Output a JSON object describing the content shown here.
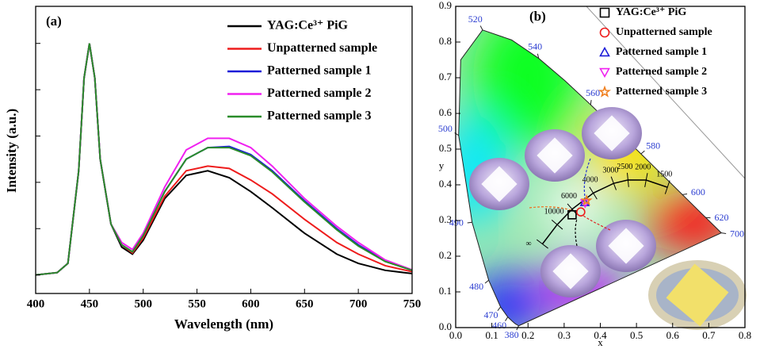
{
  "chart_data": [
    {
      "type": "line",
      "panel_label": "(a)",
      "xlabel": "Wavelength (nm)",
      "ylabel": "Intensity (a.u.)",
      "x": [
        400,
        420,
        430,
        440,
        445,
        450,
        455,
        460,
        470,
        480,
        490,
        500,
        520,
        540,
        560,
        580,
        600,
        620,
        650,
        680,
        700,
        725,
        750
      ],
      "xlim": [
        400,
        750
      ],
      "xticks": [
        400,
        450,
        500,
        550,
        600,
        650,
        700,
        750
      ],
      "ylim": [
        -0.08,
        1.16
      ],
      "yticks": [
        0,
        0.2,
        0.4,
        0.6,
        0.8,
        1
      ],
      "ytick_labels": false,
      "series": [
        {
          "name": "YAG:Ce³⁺ PiG",
          "color": "#000000",
          "values": [
            0,
            0.01,
            0.05,
            0.45,
            0.85,
            1.0,
            0.85,
            0.5,
            0.22,
            0.12,
            0.09,
            0.15,
            0.33,
            0.43,
            0.45,
            0.42,
            0.36,
            0.29,
            0.18,
            0.09,
            0.05,
            0.02,
            0.006
          ]
        },
        {
          "name": "Unpatterned sample",
          "color": "#ee1c1c",
          "values": [
            0,
            0.01,
            0.05,
            0.45,
            0.85,
            1.0,
            0.85,
            0.5,
            0.22,
            0.13,
            0.095,
            0.16,
            0.34,
            0.45,
            0.47,
            0.46,
            0.41,
            0.35,
            0.24,
            0.14,
            0.09,
            0.04,
            0.014
          ]
        },
        {
          "name": "Patterned sample 1",
          "color": "#1c1cd8",
          "values": [
            0,
            0.01,
            0.05,
            0.45,
            0.85,
            1.0,
            0.85,
            0.5,
            0.22,
            0.13,
            0.1,
            0.17,
            0.36,
            0.5,
            0.55,
            0.555,
            0.52,
            0.45,
            0.32,
            0.2,
            0.13,
            0.06,
            0.02
          ]
        },
        {
          "name": "Patterned sample 2",
          "color": "#f020f0",
          "values": [
            0,
            0.01,
            0.05,
            0.45,
            0.85,
            1.0,
            0.85,
            0.5,
            0.22,
            0.14,
            0.11,
            0.18,
            0.38,
            0.54,
            0.59,
            0.59,
            0.55,
            0.47,
            0.33,
            0.21,
            0.14,
            0.065,
            0.022
          ]
        },
        {
          "name": "Patterned sample 3",
          "color": "#2a8c2a",
          "values": [
            0,
            0.01,
            0.05,
            0.45,
            0.85,
            1.0,
            0.85,
            0.5,
            0.22,
            0.13,
            0.1,
            0.17,
            0.36,
            0.5,
            0.55,
            0.55,
            0.515,
            0.445,
            0.315,
            0.195,
            0.125,
            0.058,
            0.02
          ]
        }
      ]
    },
    {
      "type": "cie",
      "panel_label": "(b)",
      "xlabel": "x",
      "ylabel": "y",
      "xlim": [
        0,
        0.8
      ],
      "xticks": [
        {
          "value": 0,
          "label": "0.0"
        },
        {
          "value": 0.1,
          "label": "0.1"
        },
        {
          "value": 0.2,
          "label": "0.2"
        },
        {
          "value": 0.3,
          "label": "0.3"
        },
        {
          "value": 0.4,
          "label": "0.4"
        },
        {
          "value": 0.5,
          "label": "0.5"
        },
        {
          "value": 0.6,
          "label": "0.6"
        },
        {
          "value": 0.7,
          "label": "0.7"
        },
        {
          "value": 0.8,
          "label": "0.8"
        }
      ],
      "ylim": [
        0,
        0.9
      ],
      "yticks": [
        {
          "value": 0,
          "label": "0.0"
        },
        {
          "value": 0.1,
          "label": "0.1"
        },
        {
          "value": 0.2,
          "label": "0.2"
        },
        {
          "value": 0.3,
          "label": "0.3"
        },
        {
          "value": 0.4,
          "label": "0.4"
        },
        {
          "value": 0.5,
          "label": "0.5"
        },
        {
          "value": 0.6,
          "label": "0.6"
        },
        {
          "value": 0.7,
          "label": "0.7"
        },
        {
          "value": 0.8,
          "label": "0.8"
        },
        {
          "value": 0.9,
          "label": "0.9"
        }
      ],
      "spectral_locus": {
        "wavelengths": [
          "380",
          null,
          null,
          "460",
          "470",
          "480",
          "490",
          "500",
          null,
          "520",
          null,
          "540",
          null,
          "560",
          null,
          "580",
          null,
          "600",
          "620",
          "700"
        ],
        "x": [
          0.1741,
          0.1644,
          0.1566,
          0.144,
          0.1241,
          0.0913,
          0.0454,
          0.0082,
          0.0139,
          0.0743,
          0.1547,
          0.2296,
          0.3016,
          0.3731,
          0.4441,
          0.5125,
          0.5752,
          0.627,
          0.6915,
          0.7347
        ],
        "y": [
          0.005,
          0.0109,
          0.0177,
          0.0297,
          0.0578,
          0.1327,
          0.295,
          0.5384,
          0.7502,
          0.8338,
          0.8059,
          0.7543,
          0.6923,
          0.6245,
          0.5547,
          0.4866,
          0.4242,
          0.3725,
          0.3083,
          0.2653
        ]
      },
      "planckian_locus": {
        "cct": [
          "∞",
          "10000",
          "6000",
          "4000",
          "3000",
          "2500",
          "2000",
          "1500"
        ],
        "x": [
          0.2399,
          0.2807,
          0.3221,
          0.3805,
          0.4369,
          0.4765,
          0.5267,
          0.5857
        ],
        "y": [
          0.2342,
          0.2884,
          0.3318,
          0.3768,
          0.4041,
          0.4137,
          0.4133,
          0.3931
        ]
      },
      "series": [
        {
          "name": "YAG:Ce³⁺ PiG",
          "color": "#000000",
          "marker": "square",
          "x": [
            0.322
          ],
          "y": [
            0.316
          ]
        },
        {
          "name": "Unpatterned sample",
          "color": "#ee1c1c",
          "marker": "circle",
          "x": [
            0.346
          ],
          "y": [
            0.324
          ]
        },
        {
          "name": "Patterned sample 1",
          "color": "#1c1cd8",
          "marker": "triangle",
          "x": [
            0.357
          ],
          "y": [
            0.351
          ]
        },
        {
          "name": "Patterned sample 2",
          "color": "#f020f0",
          "marker": "triangle-down",
          "x": [
            0.358
          ],
          "y": [
            0.349
          ]
        },
        {
          "name": "Patterned sample 3",
          "color": "#f08020",
          "marker": "star",
          "x": [
            0.362
          ],
          "y": [
            0.356
          ]
        }
      ]
    }
  ]
}
